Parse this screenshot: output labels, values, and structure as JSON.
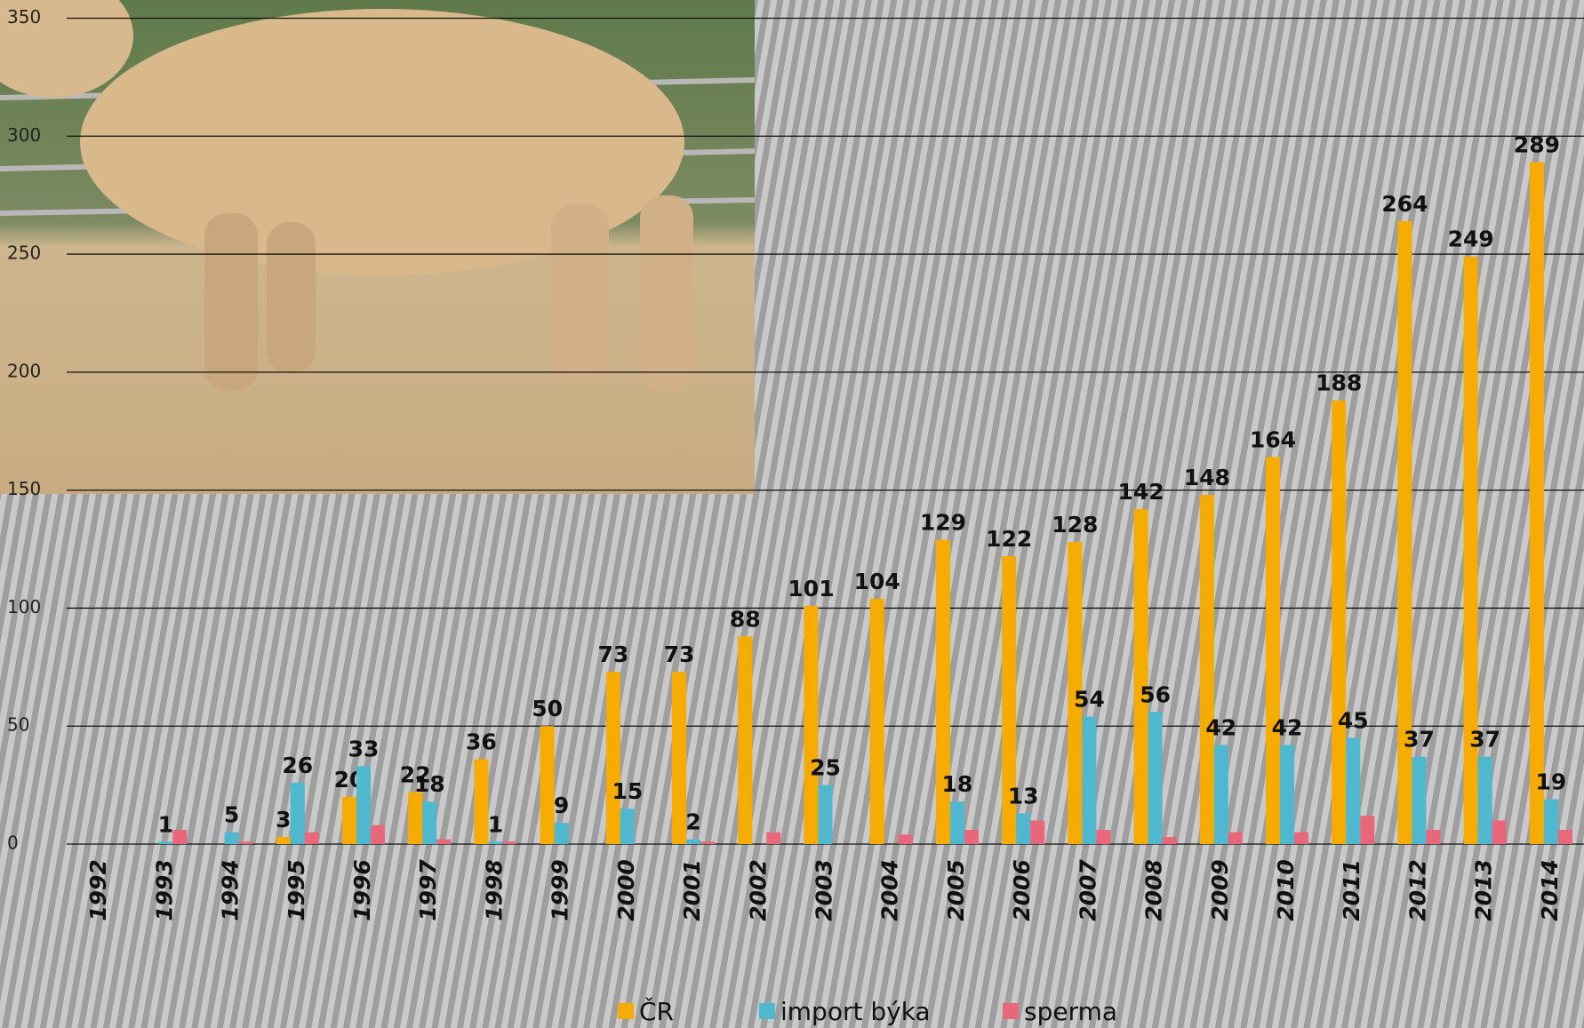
{
  "chart_data": {
    "type": "bar",
    "categories": [
      "1992",
      "1993",
      "1994",
      "1995",
      "1996",
      "1997",
      "1998",
      "1999",
      "2000",
      "2001",
      "2002",
      "2003",
      "2004",
      "2005",
      "2006",
      "2007",
      "2008",
      "2009",
      "2010",
      "2011",
      "2012",
      "2013",
      "2014"
    ],
    "series": [
      {
        "name": "ČR",
        "color": "#f5ab00",
        "show_labels": true,
        "values": [
          null,
          null,
          null,
          3,
          20,
          22,
          36,
          50,
          73,
          73,
          88,
          101,
          104,
          129,
          122,
          128,
          142,
          148,
          164,
          188,
          264,
          249,
          289
        ]
      },
      {
        "name": "import býka",
        "color": "#4fb8cf",
        "show_labels": true,
        "values": [
          null,
          1,
          5,
          26,
          33,
          18,
          1,
          9,
          15,
          2,
          null,
          25,
          null,
          18,
          13,
          54,
          56,
          42,
          42,
          45,
          37,
          37,
          19
        ]
      },
      {
        "name": "sperma",
        "color": "#e8677a",
        "show_labels": false,
        "values": [
          null,
          6,
          1,
          5,
          8,
          2,
          1,
          null,
          null,
          1,
          5,
          null,
          4,
          6,
          10,
          6,
          3,
          5,
          5,
          12,
          6,
          10,
          6
        ]
      }
    ],
    "ylim": [
      0,
      350
    ],
    "yticks": [
      0,
      50,
      100,
      150,
      200,
      250,
      300,
      350
    ],
    "grid": true,
    "legend": "bottom"
  }
}
